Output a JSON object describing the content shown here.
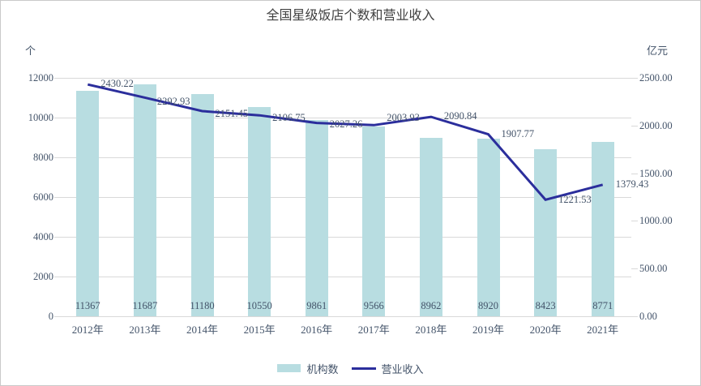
{
  "title": "全国星级饭店个数和营业收入",
  "chart_data": {
    "type": "combo",
    "title": "全国星级饭店个数和营业收入",
    "categories": [
      "2012年",
      "2013年",
      "2014年",
      "2015年",
      "2016年",
      "2017年",
      "2018年",
      "2019年",
      "2020年",
      "2021年"
    ],
    "series": [
      {
        "name": "机构数",
        "type": "bar",
        "axis": "left",
        "color": "#b8dde1",
        "values": [
          11367,
          11687,
          11180,
          10550,
          9861,
          9566,
          8962,
          8920,
          8423,
          8771
        ]
      },
      {
        "name": "营业收入",
        "type": "line",
        "axis": "right",
        "color": "#2b2e9c",
        "values": [
          2430.22,
          2292.93,
          2151.45,
          2106.75,
          2027.26,
          2003.93,
          2090.84,
          1907.77,
          1221.53,
          1379.43
        ]
      }
    ],
    "left_axis": {
      "unit": "个",
      "min": 0,
      "max": 12000,
      "step": 2000,
      "ticks": [
        "12000",
        "10000",
        "8000",
        "6000",
        "4000",
        "2000",
        "0"
      ]
    },
    "right_axis": {
      "unit": "亿元",
      "min": 0,
      "max": 2500,
      "step": 500,
      "ticks": [
        "2500.00",
        "2000.00",
        "1500.00",
        "1000.00",
        "500.00",
        "0.00"
      ]
    },
    "grid": true,
    "legend_position": "bottom",
    "colors": {
      "grid": "#d9d9d9",
      "tick_text": "#44546a",
      "title_text": "#404040",
      "border": "#c9c9c9"
    }
  }
}
